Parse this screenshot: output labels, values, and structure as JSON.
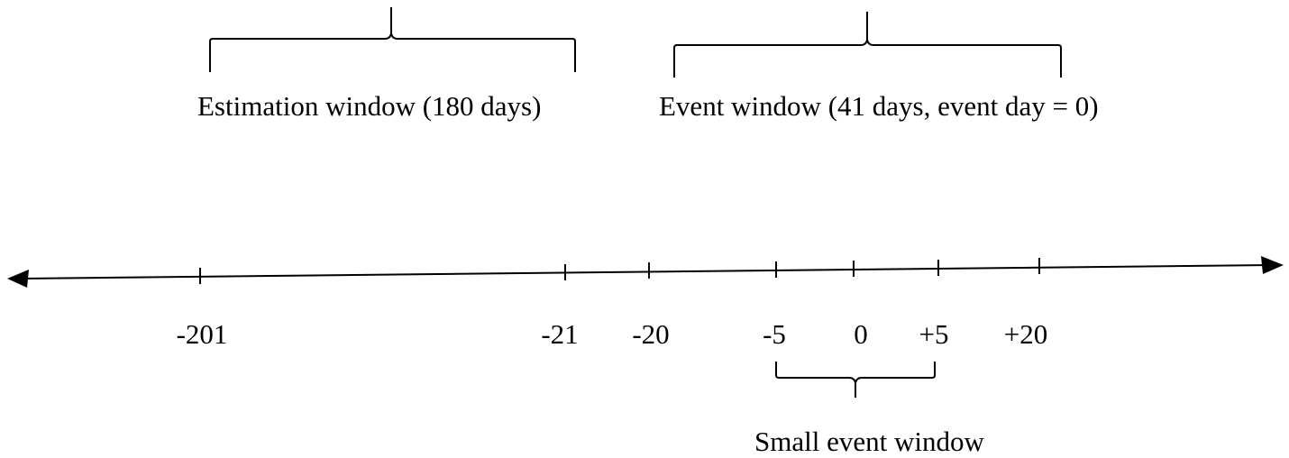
{
  "brackets": {
    "estimation": {
      "label": "Estimation window (180 days)"
    },
    "event": {
      "label": "Event window (41 days, event day = 0)"
    },
    "small_event": {
      "label": "Small event window"
    }
  },
  "timeline": {
    "ticks": [
      {
        "label": "-201"
      },
      {
        "label": "-21"
      },
      {
        "label": "-20"
      },
      {
        "label": "-5"
      },
      {
        "label": "0"
      },
      {
        "label": "+5"
      },
      {
        "label": "+20"
      }
    ]
  },
  "colors": {
    "ink": "#000000",
    "background": "#ffffff"
  }
}
